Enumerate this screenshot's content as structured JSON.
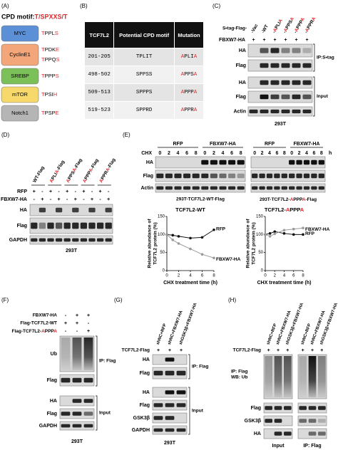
{
  "panel_a": {
    "label": "(A)",
    "title": "CPD motif: ",
    "title_motif": "T/SPXXS/T",
    "proteins": [
      {
        "name": "MYC",
        "motifs": [
          "TPPLS"
        ],
        "color": "#5b8fd6"
      },
      {
        "name": "CyclinE1",
        "motifs": [
          "TPDKE",
          "TPPQS"
        ],
        "color": "#f2a679"
      },
      {
        "name": "SREBP",
        "motifs": [
          "TPPPS"
        ],
        "color": "#7cc05a"
      },
      {
        "name": "mTOR",
        "motifs": [
          "TPSIH"
        ],
        "color": "#f7d86a"
      },
      {
        "name": "Notch1",
        "motifs": [
          "TPSPE"
        ],
        "color": "#b5b5b5"
      }
    ]
  },
  "panel_b": {
    "label": "(B)",
    "columns": [
      "TCF7L2",
      "Potential CPD motif",
      "Mutation"
    ],
    "rows": [
      [
        "201-205",
        "TPLIT",
        "APLIA"
      ],
      [
        "498-502",
        "SPPSS",
        "APPSA"
      ],
      [
        "509-513",
        "SPPPS",
        "APPPA"
      ],
      [
        "519-523",
        "SPPRD",
        "APPRA"
      ]
    ]
  },
  "panel_c": {
    "label": "(C)",
    "construct_prefix": "S•tag-Flag-",
    "lanes": [
      "-Vac",
      "-WT",
      "-APLIA",
      "-APPSA",
      "-APPPA",
      "-APPRA"
    ],
    "treatment": "FBXW7-HA",
    "signs": [
      "+",
      "+",
      "+",
      "+",
      "+",
      "+"
    ],
    "ip_rows": [
      "HA",
      "Flag"
    ],
    "ip_label": "IP:S•tag",
    "input_rows": [
      "HA",
      "Flag",
      "Actin"
    ],
    "input_label": "Input",
    "cell_line": "293T"
  },
  "panel_d": {
    "label": "(D)",
    "constructs": [
      "WT-Flag",
      "APLIA-Flag",
      "APPSA-Flag",
      "APPPA-Flag",
      "APPRA-Flag"
    ],
    "conditions": [
      {
        "name": "RFP",
        "signs": [
          "+",
          "-",
          "+",
          "-",
          "+",
          "-",
          "+",
          "-",
          "+",
          "-"
        ]
      },
      {
        "name": "FBXW7-HA",
        "signs": [
          "-",
          "+",
          "-",
          "+",
          "-",
          "+",
          "-",
          "+",
          "-",
          "+"
        ]
      }
    ],
    "rows": [
      "HA",
      "Flag",
      "GAPDH"
    ],
    "cell_line": "293T"
  },
  "panel_e": {
    "label": "(E)",
    "chx_label": "CHX",
    "time_unit": "h",
    "rows": [
      "HA",
      "Flag",
      "Actin"
    ],
    "blots": [
      {
        "groups": [
          "RFP",
          "FBXW7-HA"
        ],
        "times": [
          0,
          2,
          4,
          6,
          8,
          0,
          2,
          4,
          6,
          8
        ],
        "caption": "293T-TCF7L2-WT-Flag"
      },
      {
        "groups": [
          "RFP",
          "FBXW7-HA"
        ],
        "times": [
          0,
          2,
          4,
          6,
          8,
          0,
          2,
          4,
          6,
          8
        ],
        "caption": "293T-TCF7L2-APPPA-Flag"
      }
    ],
    "charts": [
      {
        "type": "line",
        "title": "TCF7L2-WT",
        "x_label": "CHX treatment time (h)",
        "y_label": [
          "Relative abundance of",
          "TCF7L2 protein (%)"
        ],
        "x": [
          0,
          1,
          2,
          4,
          6,
          8
        ],
        "xlim": [
          0,
          8
        ],
        "xticks": [
          0,
          2,
          4,
          6,
          8
        ],
        "ylim": [
          0,
          150
        ],
        "yticks": [
          0,
          50,
          100,
          150
        ],
        "series": [
          {
            "name": "RFP",
            "color": "#111111",
            "values": [
              100,
              98,
              95,
              90,
              92,
              113
            ]
          },
          {
            "name": "FBXW7-HA",
            "color": "#9a9a9a",
            "values": [
              100,
              85,
              75,
              60,
              45,
              35
            ]
          }
        ]
      },
      {
        "type": "line",
        "title": "TCF7L2-APPPA",
        "x_label": "CHX treatment time (h)",
        "y_label": [
          "Relative abundance of",
          "TCF7L2 protein (%)"
        ],
        "x": [
          0,
          1,
          2,
          4,
          6,
          8
        ],
        "xlim": [
          0,
          8
        ],
        "xticks": [
          0,
          2,
          4,
          6,
          8
        ],
        "ylim": [
          0,
          150
        ],
        "yticks": [
          0,
          50,
          100,
          150
        ],
        "series": [
          {
            "name": "RFP",
            "color": "#111111",
            "values": [
              100,
              103,
              108,
              103,
              100,
              100
            ]
          },
          {
            "name": "FBXW7-HA",
            "color": "#9a9a9a",
            "values": [
              100,
              95,
              102,
              112,
              115,
              118
            ]
          }
        ]
      }
    ]
  },
  "panel_f": {
    "label": "(F)",
    "conditions": [
      {
        "name": "FBXW7-HA",
        "signs": [
          "-",
          "+",
          "+"
        ]
      },
      {
        "name": "Flag-TCF7L2-WT",
        "signs": [
          "+",
          "+",
          "-"
        ]
      },
      {
        "name": "Flag-TCF7L2-APPPA",
        "signs": [
          "-",
          "-",
          "+"
        ]
      }
    ],
    "ip_rows": [
      "Ub",
      "Flag"
    ],
    "ip_label": "IP: Flag",
    "input_rows": [
      "HA",
      "Flag",
      "GAPDH"
    ],
    "input_label": "Input",
    "cell_line": "293T"
  },
  "panel_g": {
    "label": "(G)",
    "lanes": [
      "shNC+RFP",
      "shNC+FBXW7-HA",
      "shGSK3β+FBXW7-HA"
    ],
    "condition": "TCF7L2-Flag",
    "signs": [
      "+",
      "+",
      "+"
    ],
    "ip_rows": [
      "HA",
      "Flag"
    ],
    "ip_label": "IP: Flag",
    "input_rows": [
      "HA",
      "Flag",
      "GSK3β",
      "GAPDH"
    ],
    "input_label": "Input",
    "cell_line": "293T"
  },
  "panel_h": {
    "label": "(H)",
    "lanes": [
      "shNC+RFP",
      "shNC+FBXW7-HA",
      "shGSK3β+FBXW7-HA",
      "shNC+RFP",
      "shNC+FBXW7-HA",
      "shGSK3β+FBXW7-HA"
    ],
    "condition": "TCF7L2-Flag",
    "signs": [
      "+",
      "+",
      "+",
      "+",
      "+",
      "+"
    ],
    "ub_label": [
      "IP: Flag",
      "WB: Ub"
    ],
    "rows": [
      "Flag",
      "GSK3β",
      "HA"
    ],
    "group_labels": [
      "Input",
      "IP: Flag"
    ]
  }
}
